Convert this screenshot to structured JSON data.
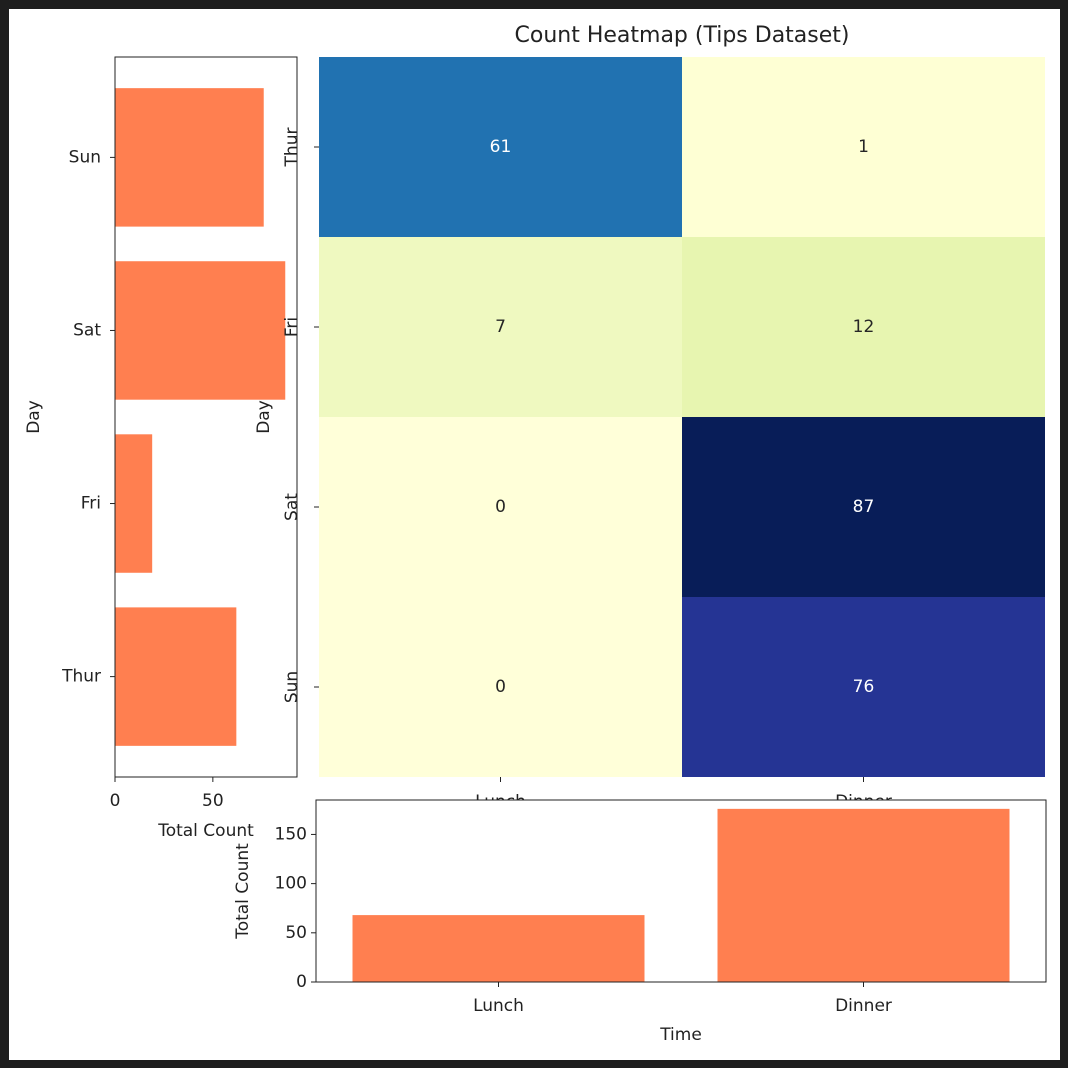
{
  "chart_data": [
    {
      "type": "barh",
      "categories": [
        "Thur",
        "Fri",
        "Sat",
        "Sun"
      ],
      "values": [
        62,
        19,
        87,
        76
      ],
      "color": "#ff7f50",
      "xlim": [
        0,
        93
      ],
      "xticks": [
        0,
        50
      ],
      "xlabel": "Total Count",
      "ylabel": "Day"
    },
    {
      "type": "heatmap",
      "title": "Count Heatmap (Tips Dataset)",
      "x_categories": [
        "Lunch",
        "Dinner"
      ],
      "y_categories": [
        "Thur",
        "Fri",
        "Sat",
        "Sun"
      ],
      "values": [
        [
          61,
          1
        ],
        [
          7,
          12
        ],
        [
          0,
          87
        ],
        [
          0,
          76
        ]
      ],
      "colors": [
        [
          "#2172b1",
          "#feffd4"
        ],
        [
          "#eff9c0",
          "#e7f5b0"
        ],
        [
          "#ffffd9",
          "#081d58"
        ],
        [
          "#ffffd9",
          "#253494"
        ]
      ],
      "ylabel": "Day"
    },
    {
      "type": "bar",
      "categories": [
        "Lunch",
        "Dinner"
      ],
      "values": [
        68,
        176
      ],
      "color": "#ff7f50",
      "ylim": [
        0,
        185
      ],
      "yticks": [
        0,
        50,
        100,
        150
      ],
      "xlabel": "Time",
      "ylabel": "Total Count"
    }
  ]
}
